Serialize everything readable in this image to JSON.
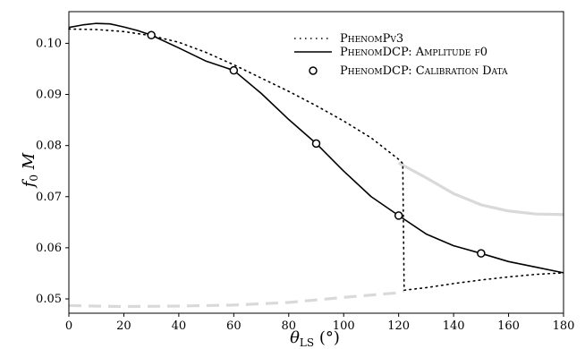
{
  "chart_data": {
    "type": "line",
    "xlabel": "θLS (°)",
    "ylabel": "f0 M",
    "xlim": [
      0,
      180
    ],
    "ylim": [
      0.0472,
      0.1062
    ],
    "x_ticks": [
      0,
      20,
      40,
      60,
      80,
      100,
      120,
      140,
      160,
      180
    ],
    "y_ticks": [
      0.05,
      0.06,
      0.07,
      0.08,
      0.09,
      0.1
    ],
    "grid": false,
    "legend_position": "top-right",
    "legend": [
      {
        "label": "PhenomPv3",
        "style": "dotted"
      },
      {
        "label": "PhenomDCP: Amplitude f0",
        "style": "solid"
      },
      {
        "label": "PhenomDCP: Calibration Data",
        "style": "open-circle"
      }
    ],
    "series": [
      {
        "name": "PhenomPv3",
        "style": "dotted",
        "color": "#000000",
        "x": [
          0,
          10,
          20,
          30,
          40,
          50,
          60,
          70,
          80,
          90,
          100,
          110,
          120,
          121.5,
          121.5,
          122,
          130,
          140,
          150,
          160,
          170,
          180
        ],
        "y": [
          0.1028,
          0.1027,
          0.1023,
          0.1015,
          0.1002,
          0.0982,
          0.0958,
          0.0932,
          0.0906,
          0.0878,
          0.0848,
          0.0815,
          0.0773,
          0.0765,
          0.0765,
          0.0517,
          0.0522,
          0.053,
          0.0537,
          0.0543,
          0.0548,
          0.0551
        ]
      },
      {
        "name": "PhenomDCP: Amplitude f0",
        "style": "solid",
        "color": "#000000",
        "x": [
          0,
          5,
          10,
          15,
          20,
          25,
          30,
          40,
          50,
          60,
          70,
          80,
          90,
          100,
          110,
          120,
          130,
          140,
          150,
          160,
          170,
          180
        ],
        "y": [
          0.1031,
          0.1036,
          0.1039,
          0.1038,
          0.1032,
          0.1025,
          0.1016,
          0.0991,
          0.0965,
          0.0947,
          0.0902,
          0.0851,
          0.0804,
          0.075,
          0.07,
          0.0663,
          0.0627,
          0.0604,
          0.0589,
          0.0573,
          0.0562,
          0.0551
        ]
      },
      {
        "name": "PhenomDCP: Calibration Data",
        "style": "marker",
        "color": "#000000",
        "x": [
          30,
          60,
          90,
          120,
          150
        ],
        "y": [
          0.1016,
          0.0947,
          0.0804,
          0.0663,
          0.0589
        ]
      },
      {
        "style": "solid",
        "color": "#d9d9d9",
        "x": [
          120,
          130,
          140,
          150,
          160,
          170,
          180
        ],
        "y": [
          0.0766,
          0.0737,
          0.0706,
          0.0684,
          0.0672,
          0.0666,
          0.0665
        ]
      },
      {
        "style": "dashed",
        "color": "#d9d9d9",
        "x": [
          0,
          20,
          40,
          60,
          80,
          100,
          120,
          122
        ],
        "y": [
          0.0487,
          0.0485,
          0.0486,
          0.0488,
          0.0493,
          0.0503,
          0.0512,
          0.0516
        ]
      }
    ]
  }
}
